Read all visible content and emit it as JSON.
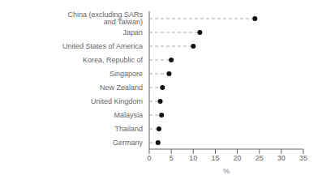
{
  "chart_data": {
    "type": "lollipop",
    "orientation": "horizontal",
    "categories": [
      "Germany",
      "Thailand",
      "Malaysia",
      "United Kingdom",
      "New Zealand",
      "Singapore",
      "Korea, Republic of",
      "United States of America",
      "Japan",
      "China (excluding SARs and Taiwan)"
    ],
    "values": [
      2.0,
      2.2,
      2.8,
      2.5,
      3.0,
      4.5,
      5.0,
      10.0,
      11.5,
      24.0
    ],
    "xlim": [
      0,
      35
    ],
    "xticks": [
      0,
      5,
      10,
      15,
      20,
      25,
      30,
      35
    ],
    "xlabel": "%",
    "color": "#111111",
    "line_style": "dashed",
    "marker": "circle",
    "grid": false
  }
}
